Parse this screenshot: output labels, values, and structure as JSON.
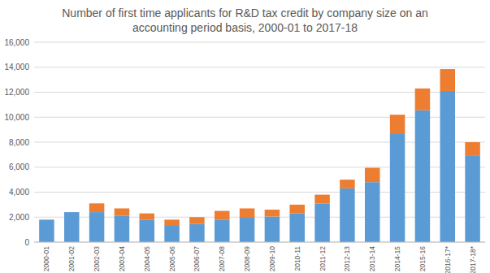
{
  "chart_data": {
    "type": "bar",
    "title": "Number of first time applicants for R&D tax credit by company size on an\naccounting period basis, 2000-01 to 2017-18",
    "categories": [
      "2000-01",
      "2001-02",
      "2002-03",
      "2003-04",
      "2004-05",
      "2005-06",
      "2006-07",
      "2007-08",
      "2008-09",
      "2009-10",
      "2010-11",
      "2011-12",
      "2012-13",
      "2013-14",
      "2014-15",
      "2015-16",
      "2016-17*",
      "2017-18*"
    ],
    "series": [
      {
        "color": "#5b9bd5",
        "values": [
          1800,
          2400,
          2400,
          2100,
          1800,
          1300,
          1450,
          1800,
          1950,
          2050,
          2300,
          3100,
          4300,
          4800,
          8650,
          10550,
          12100,
          6900
        ]
      },
      {
        "color": "#ed7d31",
        "values": [
          0,
          0,
          700,
          600,
          500,
          500,
          550,
          700,
          750,
          550,
          700,
          700,
          700,
          1150,
          1550,
          1750,
          1750,
          1100
        ]
      }
    ],
    "stacked": true,
    "grid": true,
    "ylim": [
      0,
      16000
    ],
    "yticks": [
      0,
      {
        "value": 2000,
        "label": "2,000"
      },
      {
        "value": 4000,
        "label": "4,000"
      },
      {
        "value": 6000,
        "label": "6,000"
      },
      {
        "value": 8000,
        "label": "8,000"
      },
      {
        "value": 10000,
        "label": "10,000"
      },
      {
        "value": 12000,
        "label": "12,000"
      },
      {
        "value": 14000,
        "label": "14,000"
      },
      {
        "value": 16000,
        "label": "16,000"
      }
    ]
  }
}
